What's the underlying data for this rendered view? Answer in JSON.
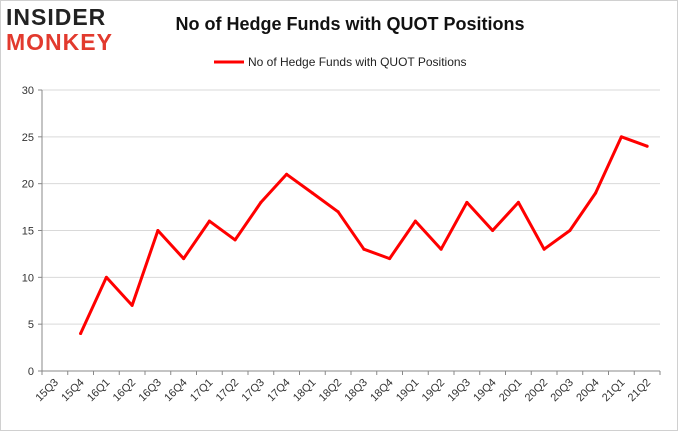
{
  "brand": {
    "line1": "INSIDER",
    "line2": "MONKEY",
    "accent": "#e23a2e"
  },
  "chart_data": {
    "type": "line",
    "title": "No of Hedge Funds with QUOT Positions",
    "xlabel": "",
    "ylabel": "",
    "ylim": [
      0,
      30
    ],
    "yticks": [
      0,
      5,
      10,
      15,
      20,
      25,
      30
    ],
    "grid": true,
    "legend": "top-center",
    "categories": [
      "15Q3",
      "15Q4",
      "16Q1",
      "16Q2",
      "16Q3",
      "16Q4",
      "17Q1",
      "17Q2",
      "17Q3",
      "17Q4",
      "18Q1",
      "18Q2",
      "18Q3",
      "18Q4",
      "19Q1",
      "19Q2",
      "19Q3",
      "19Q4",
      "20Q1",
      "20Q2",
      "20Q3",
      "20Q4",
      "21Q1",
      "21Q2"
    ],
    "series": [
      {
        "name": "No of Hedge Funds with QUOT Positions",
        "color": "#ff0000",
        "values": [
          null,
          4,
          10,
          7,
          15,
          12,
          16,
          14,
          18,
          21,
          19,
          17,
          13,
          12,
          16,
          13,
          18,
          15,
          18,
          13,
          15,
          19,
          25,
          24
        ]
      }
    ]
  }
}
